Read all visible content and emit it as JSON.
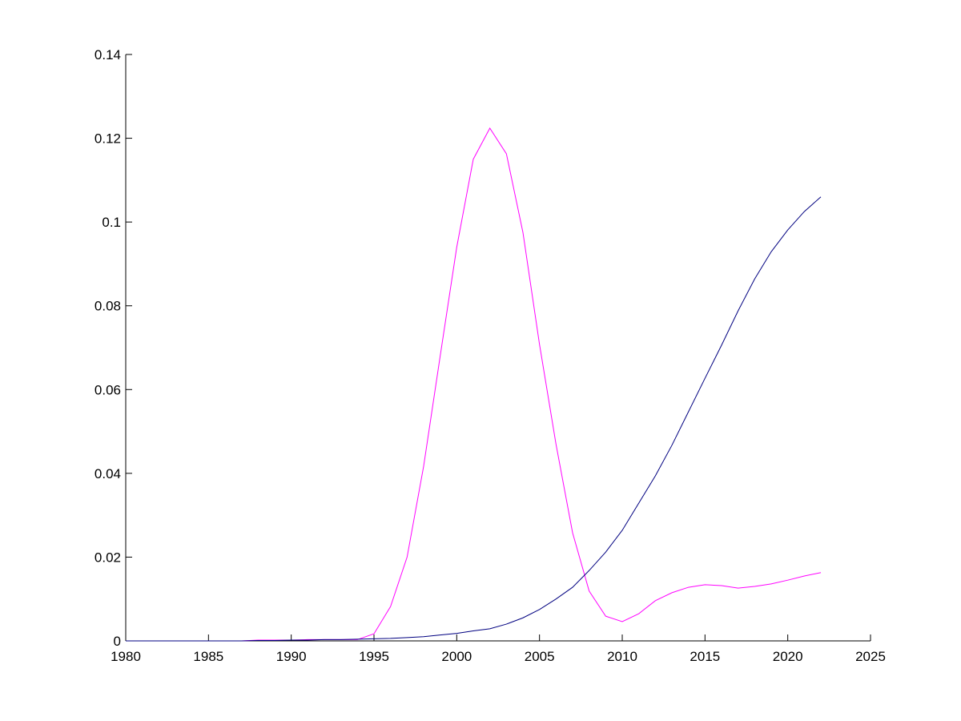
{
  "chart_data": {
    "type": "line",
    "x": [
      1980,
      1981,
      1982,
      1983,
      1984,
      1985,
      1986,
      1987,
      1988,
      1989,
      1990,
      1991,
      1992,
      1993,
      1994,
      1995,
      1996,
      1997,
      1998,
      1999,
      2000,
      2001,
      2002,
      2003,
      2004,
      2005,
      2006,
      2007,
      2008,
      2009,
      2010,
      2011,
      2012,
      2013,
      2014,
      2015,
      2016,
      2017,
      2018,
      2019,
      2020,
      2021,
      2022
    ],
    "series": [
      {
        "color": "#ff00ff",
        "values": [
          0,
          0,
          0,
          0,
          0,
          0,
          0,
          0,
          0.0002,
          0.0002,
          0.0002,
          0.0003,
          0.0003,
          0.0003,
          0.0003,
          0.0017,
          0.0082,
          0.02,
          0.0417,
          0.068,
          0.094,
          0.115,
          0.1224,
          0.1163,
          0.0975,
          0.0708,
          0.0469,
          0.0258,
          0.0119,
          0.0059,
          0.0046,
          0.0065,
          0.0096,
          0.0115,
          0.0128,
          0.0134,
          0.0132,
          0.0126,
          0.013,
          0.0136,
          0.0145,
          0.0155,
          0.0163
        ]
      },
      {
        "color": "#000080",
        "values": [
          0,
          0,
          0,
          0,
          0,
          0,
          0,
          0,
          0.0001,
          0.0001,
          0.0002,
          0.0002,
          0.0003,
          0.0003,
          0.0004,
          0.0005,
          0.0006,
          0.0008,
          0.001,
          0.0014,
          0.0018,
          0.0024,
          0.0029,
          0.004,
          0.0055,
          0.0075,
          0.01,
          0.0128,
          0.0168,
          0.0212,
          0.0264,
          0.0329,
          0.0394,
          0.0467,
          0.0547,
          0.0627,
          0.0706,
          0.0788,
          0.0864,
          0.0929,
          0.0981,
          0.1025,
          0.106
        ]
      }
    ],
    "xlim": [
      1980,
      2025
    ],
    "xticks": [
      1980,
      1985,
      1990,
      1995,
      2000,
      2005,
      2010,
      2015,
      2020,
      2025
    ],
    "ylim": [
      0,
      0.14
    ],
    "yticks": [
      0,
      0.02,
      0.04,
      0.06,
      0.08,
      0.1,
      0.12,
      0.14
    ]
  }
}
